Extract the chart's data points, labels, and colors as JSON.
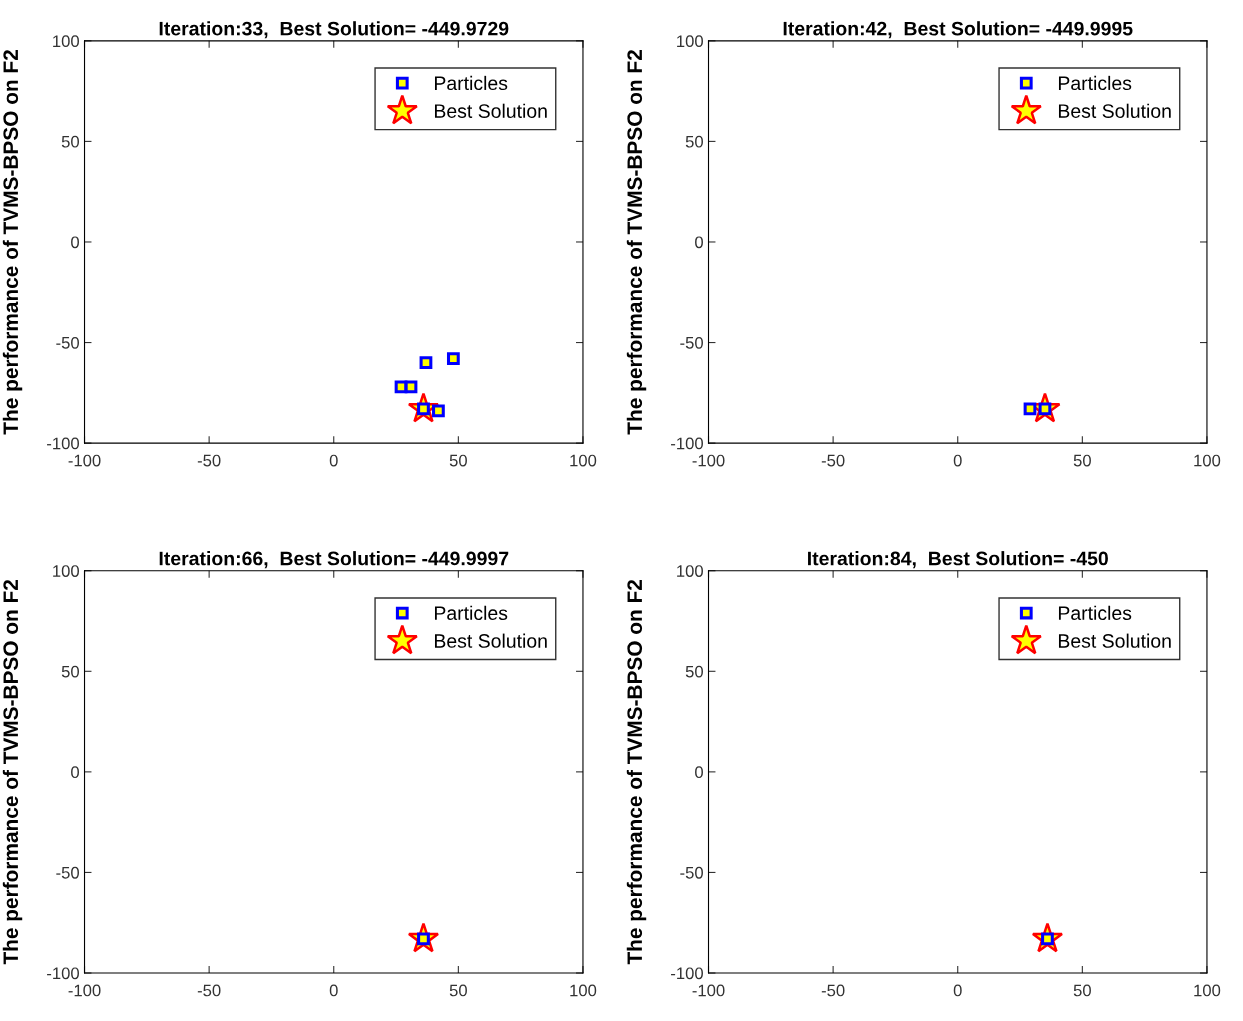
{
  "chart_data": [
    {
      "type": "scatter",
      "title": "Iteration:33,  Best Solution= -449.9729",
      "ylabel": "The performance of TVMS-BPSO on F2",
      "xlim": [
        -100,
        100
      ],
      "ylim": [
        -100,
        100
      ],
      "xticks": [
        -100,
        -50,
        0,
        50,
        100
      ],
      "yticks": [
        -100,
        -50,
        0,
        50,
        100
      ],
      "grid": false,
      "legend": "top right",
      "series": [
        {
          "name": "Particles",
          "marker": "square",
          "color": "#0000ff",
          "x": [
            37,
            48,
            27,
            31,
            42,
            36
          ],
          "values": [
            -60,
            -58,
            -72,
            -72,
            -84,
            -83
          ]
        },
        {
          "name": "Best Solution",
          "marker": "star",
          "color": "#ff0000",
          "x": [
            36
          ],
          "values": [
            -83
          ]
        }
      ]
    },
    {
      "type": "scatter",
      "title": "Iteration:42,  Best Solution= -449.9995",
      "ylabel": "The performance of TVMS-BPSO on F2",
      "xlim": [
        -100,
        100
      ],
      "ylim": [
        -100,
        100
      ],
      "xticks": [
        -100,
        -50,
        0,
        50,
        100
      ],
      "yticks": [
        -100,
        -50,
        0,
        50,
        100
      ],
      "grid": false,
      "legend": "top right",
      "series": [
        {
          "name": "Particles",
          "marker": "square",
          "color": "#0000ff",
          "x": [
            29,
            35
          ],
          "values": [
            -83,
            -83
          ]
        },
        {
          "name": "Best Solution",
          "marker": "star",
          "color": "#ff0000",
          "x": [
            35
          ],
          "values": [
            -83
          ]
        }
      ]
    },
    {
      "type": "scatter",
      "title": "Iteration:66,  Best Solution= -449.9997",
      "ylabel": "The performance of TVMS-BPSO on F2",
      "xlim": [
        -100,
        100
      ],
      "ylim": [
        -100,
        100
      ],
      "xticks": [
        -100,
        -50,
        0,
        50,
        100
      ],
      "yticks": [
        -100,
        -50,
        0,
        50,
        100
      ],
      "grid": false,
      "legend": "top right",
      "series": [
        {
          "name": "Particles",
          "marker": "square",
          "color": "#0000ff",
          "x": [
            36
          ],
          "values": [
            -83
          ]
        },
        {
          "name": "Best Solution",
          "marker": "star",
          "color": "#ff0000",
          "x": [
            36
          ],
          "values": [
            -83
          ]
        }
      ]
    },
    {
      "type": "scatter",
      "title": "Iteration:84,  Best Solution= -450",
      "ylabel": "The performance of TVMS-BPSO on F2",
      "xlim": [
        -100,
        100
      ],
      "ylim": [
        -100,
        100
      ],
      "xticks": [
        -100,
        -50,
        0,
        50,
        100
      ],
      "yticks": [
        -100,
        -50,
        0,
        50,
        100
      ],
      "grid": false,
      "legend": "top right",
      "series": [
        {
          "name": "Particles",
          "marker": "square",
          "color": "#0000ff",
          "x": [
            36
          ],
          "values": [
            -83
          ]
        },
        {
          "name": "Best Solution",
          "marker": "star",
          "color": "#ff0000",
          "x": [
            36
          ],
          "values": [
            -83
          ]
        }
      ]
    }
  ]
}
